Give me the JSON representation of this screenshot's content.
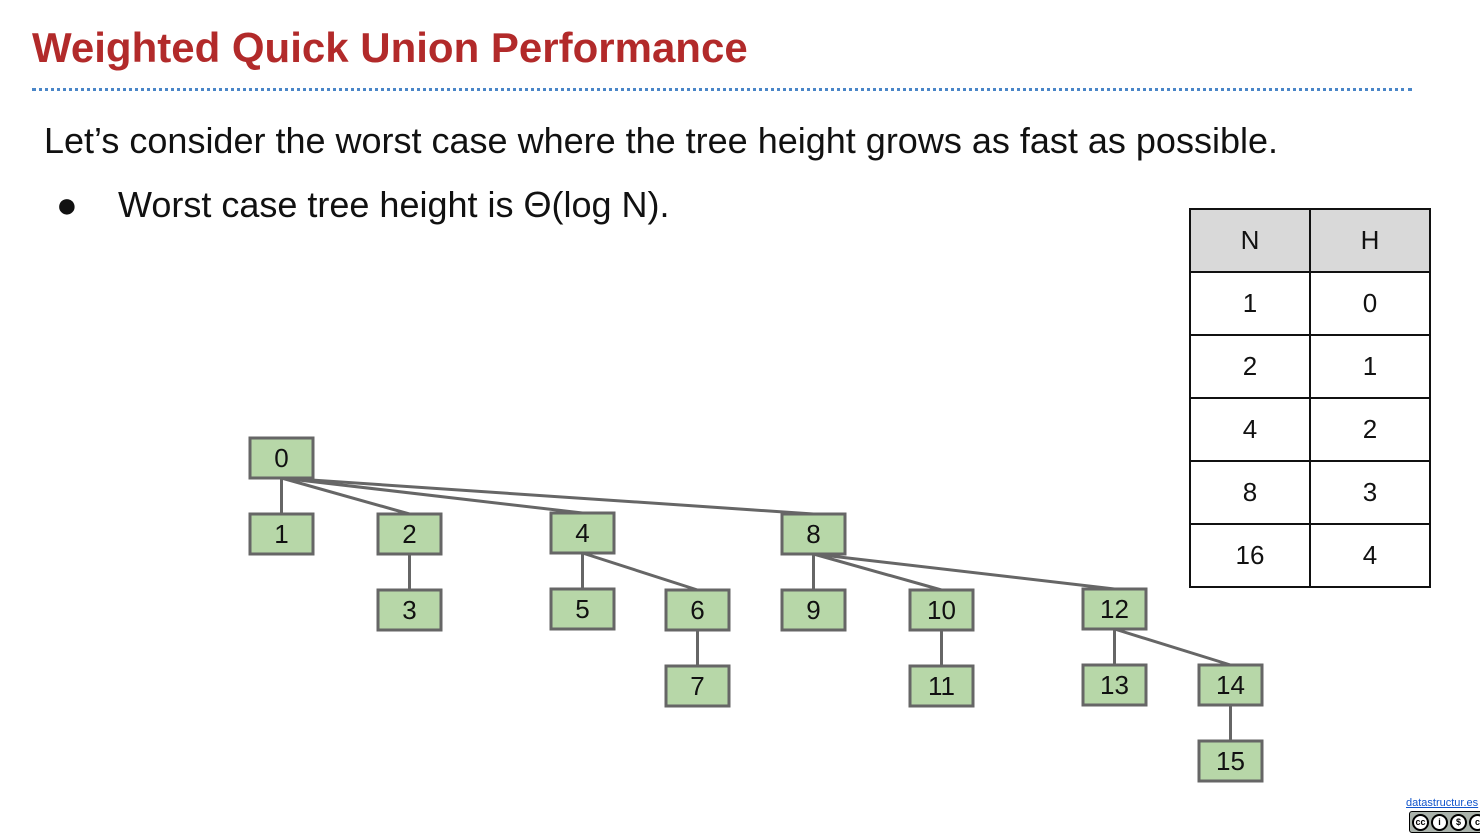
{
  "slide": {
    "title": "Weighted Quick Union Performance",
    "intro": "Let’s consider the worst case where the tree height grows as fast as possible.",
    "bullet_marker": "●",
    "bullet": "Worst case tree height is Θ(log N)."
  },
  "tree": {
    "nodes": [
      "0",
      "1",
      "2",
      "3",
      "4",
      "5",
      "6",
      "7",
      "8",
      "9",
      "10",
      "11",
      "12",
      "13",
      "14",
      "15"
    ],
    "edges": [
      [
        "0",
        "1"
      ],
      [
        "0",
        "2"
      ],
      [
        "0",
        "4"
      ],
      [
        "0",
        "8"
      ],
      [
        "2",
        "3"
      ],
      [
        "4",
        "5"
      ],
      [
        "4",
        "6"
      ],
      [
        "6",
        "7"
      ],
      [
        "8",
        "9"
      ],
      [
        "8",
        "10"
      ],
      [
        "8",
        "12"
      ],
      [
        "10",
        "11"
      ],
      [
        "12",
        "13"
      ],
      [
        "12",
        "14"
      ],
      [
        "14",
        "15"
      ]
    ]
  },
  "table": {
    "headers": [
      "N",
      "H"
    ],
    "rows": [
      [
        "1",
        "0"
      ],
      [
        "2",
        "1"
      ],
      [
        "4",
        "2"
      ],
      [
        "8",
        "3"
      ],
      [
        "16",
        "4"
      ]
    ]
  },
  "footer": {
    "link": "datastructur.es",
    "license_icon": "cc-by-nc-sa-icon",
    "license_glyphs": [
      "cc",
      "i",
      "$",
      "c"
    ]
  },
  "colors": {
    "title": "#b22a2a",
    "node_fill": "#b7d7a8",
    "node_stroke": "#666666",
    "rule": "#4a86c8",
    "table_header_bg": "#d9d9d9"
  }
}
